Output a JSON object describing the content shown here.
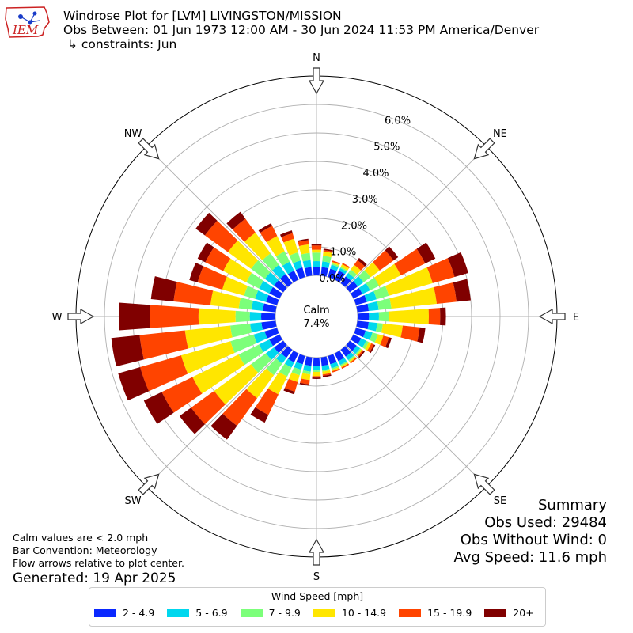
{
  "header": {
    "line1": "Windrose Plot for [LVM] LIVINGSTON/MISSION",
    "line2": "Obs Between: 01 Jun 1973 12:00 AM - 30 Jun 2024 11:53 PM America/Denver",
    "line3": " ↳ constraints: Jun"
  },
  "logo": {
    "text": "IEM",
    "icon": "iowa-state-map-logo"
  },
  "calm": {
    "label": "Calm",
    "value": "7.4%"
  },
  "summary": {
    "title": "Summary",
    "obs_used": "Obs Used: 29484",
    "obs_without_wind": "Obs Without Wind: 0",
    "avg_speed": "Avg Speed: 11.6 mph"
  },
  "notes": {
    "calm": "Calm values are < 2.0 mph",
    "convention": "Bar Convention: Meteorology",
    "arrows": "Flow arrows relative to plot center.",
    "generated": "Generated: 19 Apr 2025"
  },
  "legend": {
    "title": "Wind Speed [mph]",
    "items": [
      "2 - 4.9",
      "5 - 6.9",
      "7 - 9.9",
      "10 - 14.9",
      "15 - 19.9",
      "20+"
    ]
  },
  "colors": {
    "bins": [
      "#0a28ff",
      "#00d7ee",
      "#7cff7a",
      "#ffe600",
      "#ff4400",
      "#800000"
    ],
    "grid": "#b0b0b0",
    "logo_red": "#cc2222"
  },
  "chart_data": {
    "type": "windrose",
    "title": "Windrose Plot for [LVM] LIVINGSTON/MISSION",
    "directions_deg": [
      0,
      10,
      20,
      30,
      40,
      50,
      60,
      70,
      80,
      90,
      100,
      110,
      120,
      130,
      140,
      150,
      160,
      170,
      180,
      190,
      200,
      210,
      220,
      230,
      240,
      250,
      260,
      270,
      280,
      290,
      300,
      310,
      320,
      330,
      340,
      350
    ],
    "compass_labels": [
      "N",
      "NE",
      "E",
      "SE",
      "S",
      "SW",
      "W",
      "NW"
    ],
    "radial_ticks": [
      "0.0%",
      "1.0%",
      "2.0%",
      "3.0%",
      "4.0%",
      "5.0%",
      "6.0%"
    ],
    "rlim": [
      0,
      7
    ],
    "calm_percent": 7.4,
    "speed_bins": [
      "2 - 4.9",
      "5 - 6.9",
      "7 - 9.9",
      "10 - 14.9",
      "15 - 19.9",
      "20+"
    ],
    "cumulative_percent": [
      [
        0.3,
        0.5,
        0.8,
        0.9,
        1.05,
        1.1
      ],
      [
        0.3,
        0.5,
        0.7,
        0.85,
        0.9,
        0.95
      ],
      [
        0.3,
        0.45,
        0.5,
        0.55,
        0.6,
        0.6
      ],
      [
        0.35,
        0.45,
        0.5,
        0.6,
        0.65,
        0.65
      ],
      [
        0.3,
        0.45,
        0.6,
        0.8,
        1.0,
        1.1
      ],
      [
        0.35,
        0.6,
        0.9,
        1.3,
        1.9,
        2.1
      ],
      [
        0.35,
        0.65,
        1.0,
        1.85,
        2.8,
        3.2
      ],
      [
        0.4,
        0.75,
        1.2,
        2.8,
        3.6,
        4.1
      ],
      [
        0.4,
        0.75,
        1.2,
        2.8,
        3.5,
        4.0
      ],
      [
        0.4,
        0.75,
        1.1,
        2.5,
        2.9,
        3.1
      ],
      [
        0.4,
        0.7,
        0.9,
        1.6,
        2.2,
        2.4
      ],
      [
        0.35,
        0.6,
        0.8,
        1.0,
        1.2,
        1.3
      ],
      [
        0.3,
        0.5,
        0.6,
        0.7,
        0.8,
        0.85
      ],
      [
        0.3,
        0.45,
        0.5,
        0.55,
        0.6,
        0.65
      ],
      [
        0.3,
        0.45,
        0.5,
        0.55,
        0.6,
        0.6
      ],
      [
        0.3,
        0.45,
        0.5,
        0.55,
        0.6,
        0.6
      ],
      [
        0.3,
        0.45,
        0.5,
        0.55,
        0.6,
        0.6
      ],
      [
        0.3,
        0.45,
        0.5,
        0.6,
        0.65,
        0.7
      ],
      [
        0.3,
        0.45,
        0.5,
        0.65,
        0.7,
        0.75
      ],
      [
        0.3,
        0.5,
        0.6,
        0.8,
        0.95,
        1.0
      ],
      [
        0.3,
        0.5,
        0.7,
        0.95,
        1.3,
        1.4
      ],
      [
        0.35,
        0.55,
        0.9,
        1.6,
        2.4,
        2.7
      ],
      [
        0.35,
        0.6,
        1.1,
        2.1,
        3.3,
        3.9
      ],
      [
        0.4,
        0.75,
        1.4,
        3.0,
        4.0,
        4.5
      ],
      [
        0.4,
        0.8,
        1.6,
        3.4,
        4.6,
        5.3
      ],
      [
        0.45,
        0.85,
        1.7,
        3.5,
        5.0,
        5.8
      ],
      [
        0.5,
        0.9,
        1.6,
        3.2,
        4.8,
        5.8
      ],
      [
        0.5,
        0.9,
        1.4,
        2.7,
        4.4,
        5.5
      ],
      [
        0.45,
        0.85,
        1.3,
        2.3,
        3.6,
        4.4
      ],
      [
        0.4,
        0.8,
        1.2,
        2.0,
        2.9,
        3.2
      ],
      [
        0.4,
        0.8,
        1.3,
        2.2,
        2.9,
        3.2
      ],
      [
        0.4,
        0.8,
        1.4,
        2.4,
        3.4,
        3.8
      ],
      [
        0.4,
        0.8,
        1.3,
        2.2,
        2.8,
        3.1
      ],
      [
        0.35,
        0.7,
        1.1,
        1.7,
        2.1,
        2.2
      ],
      [
        0.35,
        0.6,
        0.9,
        1.4,
        1.6,
        1.7
      ],
      [
        0.3,
        0.55,
        0.8,
        1.1,
        1.25,
        1.3
      ]
    ]
  }
}
